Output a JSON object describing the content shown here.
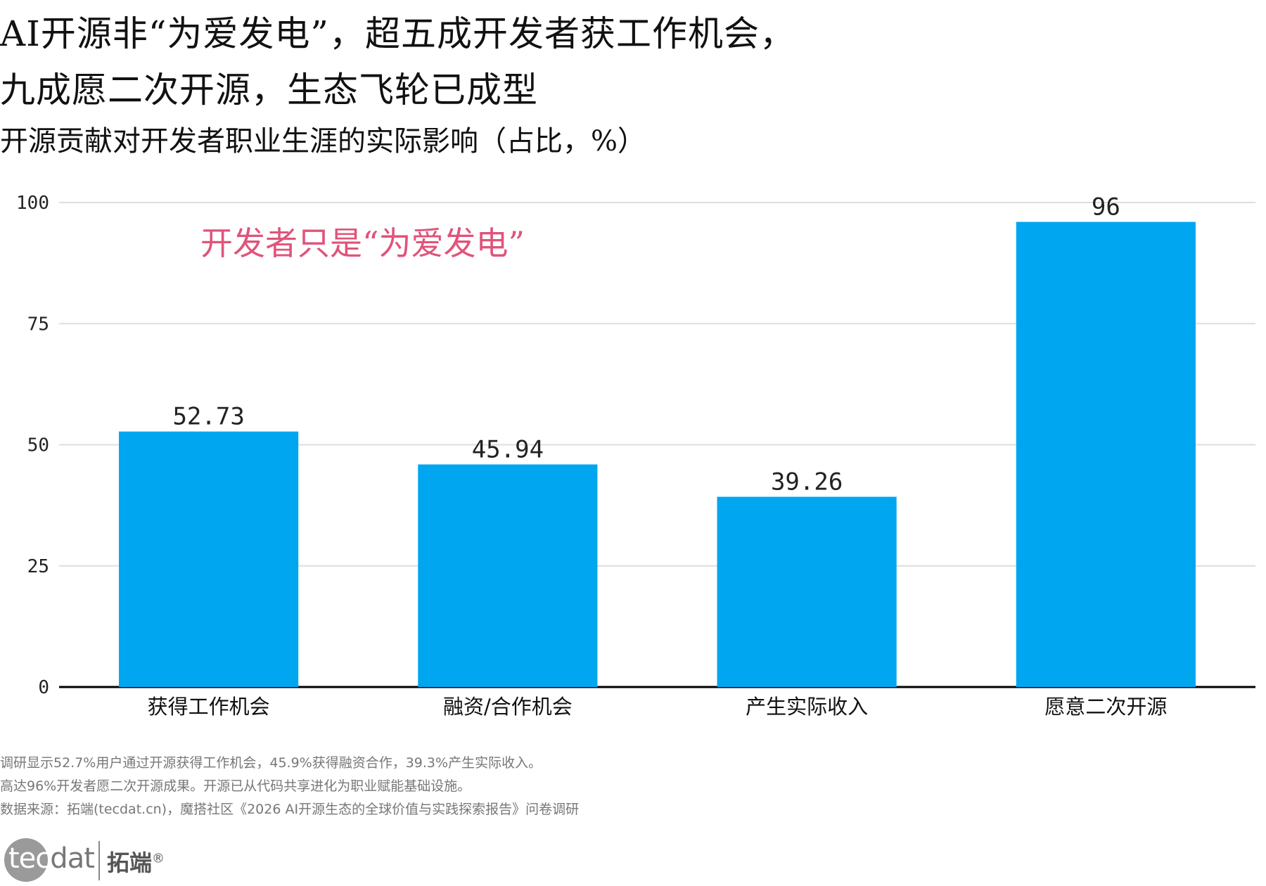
{
  "title_line1": "AI开源非“为爱发电”，超五成开发者获工作机会，",
  "title_line2": "九成愿二次开源，生态飞轮已成型",
  "subtitle": "开源贡献对开发者职业生涯的实际影响（占比，%）",
  "annotation": "开发者只是“为爱发电”",
  "chart_data": {
    "type": "bar",
    "categories": [
      "获得工作机会",
      "融资/合作机会",
      "产生实际收入",
      "愿意二次开源"
    ],
    "values": [
      52.73,
      45.94,
      39.26,
      96
    ],
    "data_labels": [
      "52.73",
      "45.94",
      "39.26",
      "96"
    ],
    "ylim": [
      0,
      100
    ],
    "yticks": [
      0,
      25,
      50,
      75,
      100
    ],
    "grid": true,
    "bar_color": "#00a6ef",
    "annotation_color": "#e0537a"
  },
  "footnotes": [
    "调研显示52.7%用户通过开源获得工作机会，45.9%获得融资合作，39.3%产生实际收入。",
    "高达96%开发者愿二次开源成果。开源已从代码共享进化为职业赋能基础设施。",
    "数据来源：拓端(tecdat.cn)，魔搭社区《2026 AI开源生态的全球价值与实践探索报告》问卷调研"
  ],
  "logo": {
    "word_prefix": "tec",
    "word_suffix": "dat",
    "cn": "拓端",
    "mark": "®"
  }
}
